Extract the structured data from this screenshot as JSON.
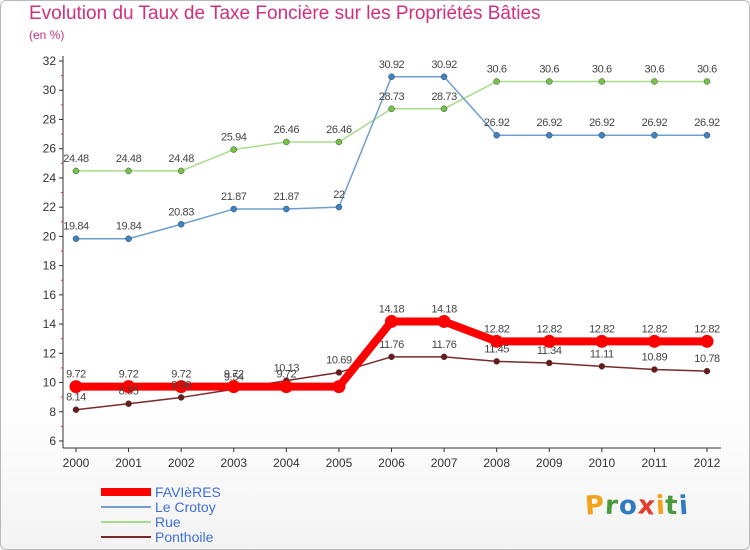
{
  "title": "Evolution du Taux de Taxe Foncière sur les Propriétés Bâties",
  "subtitle": "(en %)",
  "brand": {
    "text": "Proxiti",
    "letters": [
      {
        "ch": "P",
        "color": "#f3a21b"
      },
      {
        "ch": "r",
        "color": "#4a9a3d"
      },
      {
        "ch": "o",
        "color": "#2f7bc2"
      },
      {
        "ch": "x",
        "color": "#e23d2d"
      },
      {
        "ch": "i",
        "color": "#f3a21b"
      },
      {
        "ch": "t",
        "color": "#4a9a3d"
      },
      {
        "ch": "i",
        "color": "#2f7bc2"
      }
    ]
  },
  "chart_data": {
    "type": "line",
    "title": "Evolution du Taux de Taxe Foncière sur les Propriétés Bâties",
    "ylabel": "(en %)",
    "xlabel": "",
    "x": [
      "2000",
      "2001",
      "2002",
      "2003",
      "2004",
      "2005",
      "2006",
      "2007",
      "2008",
      "2009",
      "2010",
      "2011",
      "2012"
    ],
    "ylim": [
      6,
      32
    ],
    "yticks": [
      6,
      8,
      10,
      12,
      14,
      16,
      18,
      20,
      22,
      24,
      26,
      28,
      30,
      32
    ],
    "grid": false,
    "legend_position": "bottom-left",
    "series": [
      {
        "name": "FAVIèRES",
        "color": "#ff0000",
        "point_color": "#ff0000",
        "values": [
          9.72,
          9.72,
          9.72,
          9.72,
          9.72,
          9.72,
          14.18,
          14.18,
          12.82,
          12.82,
          12.82,
          12.82,
          12.82
        ],
        "labels": [
          "9.72",
          "9.72",
          "9.72",
          "9.72",
          "9.72",
          "",
          "14.18",
          "14.18",
          "12.82",
          "12.82",
          "12.82",
          "12.82",
          "12.82"
        ]
      },
      {
        "name": "Le Crotoy",
        "color": "#6f9fd0",
        "point_color": "#3b84c8",
        "values": [
          19.84,
          19.84,
          20.83,
          21.87,
          21.87,
          22,
          30.92,
          30.92,
          26.92,
          26.92,
          26.92,
          26.92,
          26.92
        ],
        "labels": [
          "19.84",
          "19.84",
          "20.83",
          "21.87",
          "21.87",
          "22",
          "30.92",
          "30.92",
          "26.92",
          "26.92",
          "26.92",
          "26.92",
          "26.92"
        ]
      },
      {
        "name": "Rue",
        "color": "#a8dc8a",
        "point_color": "#74c445",
        "values": [
          24.48,
          24.48,
          24.48,
          25.94,
          26.46,
          26.46,
          28.73,
          28.73,
          30.6,
          30.6,
          30.6,
          30.6,
          30.6
        ],
        "labels": [
          "24.48",
          "24.48",
          "24.48",
          "25.94",
          "26.46",
          "26.46",
          "28.73",
          "28.73",
          "30.6",
          "30.6",
          "30.6",
          "30.6",
          "30.6"
        ]
      },
      {
        "name": "Ponthoile",
        "color": "#7a2a2a",
        "point_color": "#6b1a1a",
        "values": [
          8.14,
          8.55,
          8.98,
          9.54,
          10.13,
          10.69,
          11.76,
          11.76,
          11.45,
          11.34,
          11.11,
          10.89,
          10.78
        ],
        "labels": [
          "8.14",
          "8.55",
          "8.98",
          "9.54",
          "10.13",
          "10.69",
          "11.76",
          "11.76",
          "11.45",
          "11.34",
          "11.11",
          "10.89",
          "10.78"
        ]
      }
    ]
  }
}
